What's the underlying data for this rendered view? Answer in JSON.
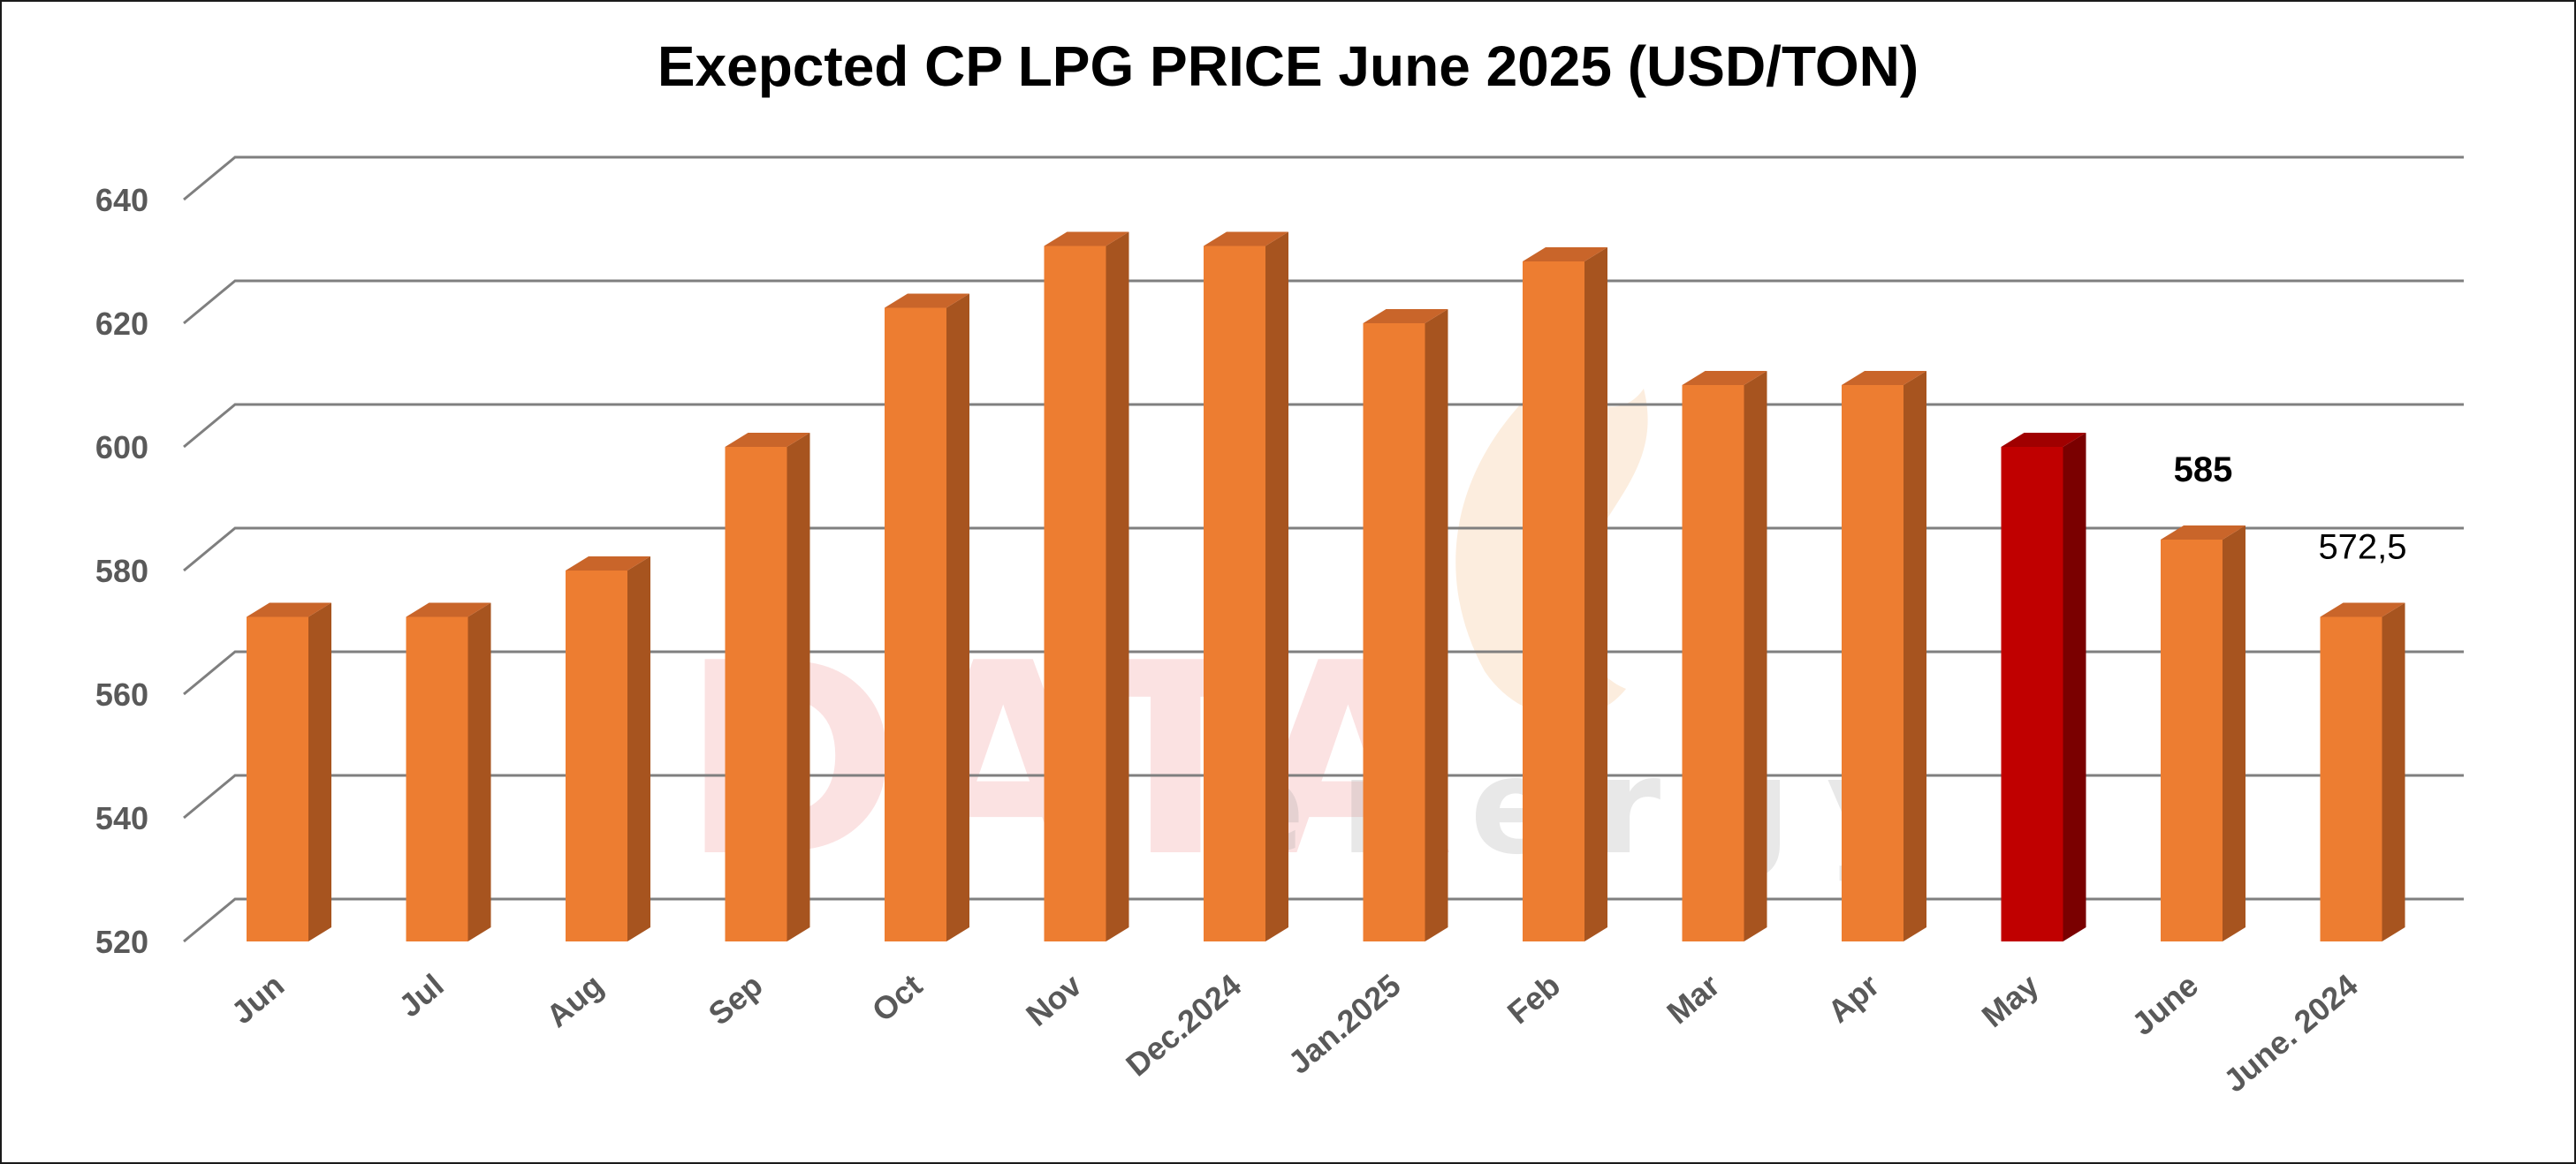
{
  "chart_data": {
    "type": "bar",
    "title": "Exepcted CP LPG PRICE June 2025 (USD/TON)",
    "categories": [
      "Jun",
      "Jul",
      "Aug",
      "Sep",
      "Oct",
      "Nov",
      "Dec.2024",
      "Jan.2025",
      "Feb",
      "Mar",
      "Apr",
      "May",
      "June",
      "June. 2024"
    ],
    "values": [
      572.5,
      572.5,
      580,
      600,
      622.5,
      632.5,
      632.5,
      620,
      630,
      610,
      610,
      600,
      585,
      572.5
    ],
    "ylim": [
      520,
      640
    ],
    "yticks": [
      520,
      540,
      560,
      580,
      600,
      620,
      640
    ],
    "grid": true,
    "legend": "none",
    "data_labels": [
      {
        "category": "June",
        "text": "585",
        "bold": true
      },
      {
        "category": "June. 2024",
        "text": "572,5",
        "bold": false
      }
    ],
    "highlight_category": "May",
    "colors": {
      "bar_front": "#ED7D31",
      "bar_side": "#A7541F",
      "bar_top": "#C9652A",
      "highlight_front": "#C00000",
      "highlight_side": "#7A0000",
      "highlight_top": "#A00000",
      "grid": "#7F7F7F",
      "tick_text": "#595959"
    }
  },
  "watermark": {
    "brand": "DATA",
    "suffix": "energy"
  }
}
